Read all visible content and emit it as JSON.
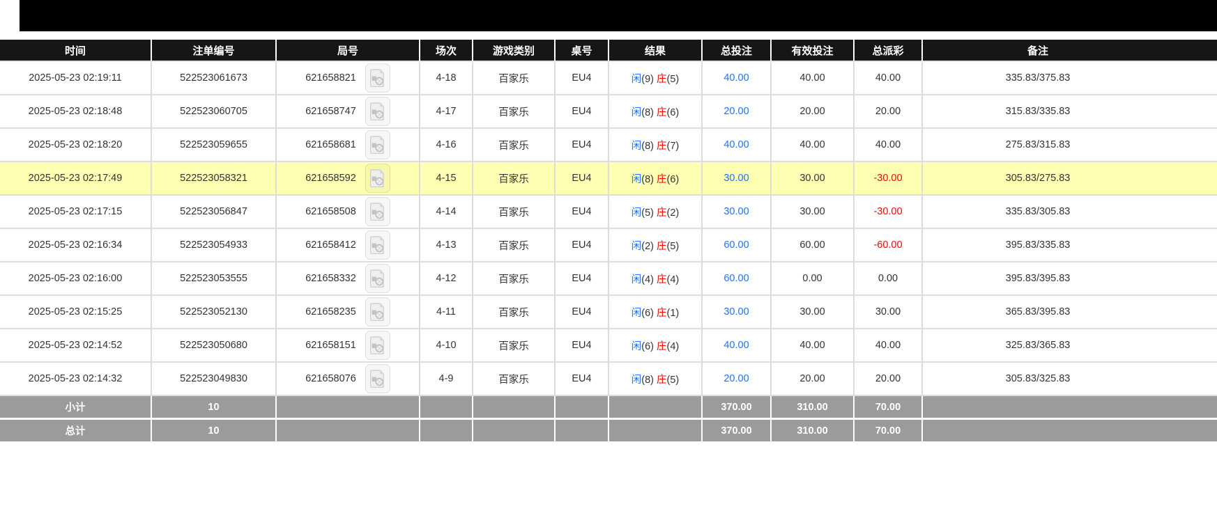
{
  "table": {
    "columns": [
      {
        "key": "time",
        "label": "时间"
      },
      {
        "key": "bet_id",
        "label": "注单编号"
      },
      {
        "key": "round",
        "label": "局号"
      },
      {
        "key": "session",
        "label": "场次"
      },
      {
        "key": "game",
        "label": "游戏类别"
      },
      {
        "key": "table_no",
        "label": "桌号"
      },
      {
        "key": "result",
        "label": "结果"
      },
      {
        "key": "total_bet",
        "label": "总投注"
      },
      {
        "key": "valid_bet",
        "label": "有效投注"
      },
      {
        "key": "payout",
        "label": "总派彩"
      },
      {
        "key": "remark",
        "label": "备注"
      }
    ],
    "icons": {
      "round_video_icon": "video-file-icon"
    },
    "rows": [
      {
        "time": "2025-05-23 02:19:11",
        "bet_id": "522523061673",
        "round": "621658821",
        "session": "4-18",
        "game": "百家乐",
        "table_no": "EU4",
        "player": "闲",
        "player_pts": "(9)",
        "banker": "庄",
        "banker_pts": "(5)",
        "total_bet": "40.00",
        "valid_bet": "40.00",
        "payout": "40.00",
        "payout_neg": false,
        "remark": "335.83/375.83",
        "highlight": false
      },
      {
        "time": "2025-05-23 02:18:48",
        "bet_id": "522523060705",
        "round": "621658747",
        "session": "4-17",
        "game": "百家乐",
        "table_no": "EU4",
        "player": "闲",
        "player_pts": "(8)",
        "banker": "庄",
        "banker_pts": "(6)",
        "total_bet": "20.00",
        "valid_bet": "20.00",
        "payout": "20.00",
        "payout_neg": false,
        "remark": "315.83/335.83",
        "highlight": false
      },
      {
        "time": "2025-05-23 02:18:20",
        "bet_id": "522523059655",
        "round": "621658681",
        "session": "4-16",
        "game": "百家乐",
        "table_no": "EU4",
        "player": "闲",
        "player_pts": "(8)",
        "banker": "庄",
        "banker_pts": "(7)",
        "total_bet": "40.00",
        "valid_bet": "40.00",
        "payout": "40.00",
        "payout_neg": false,
        "remark": "275.83/315.83",
        "highlight": false
      },
      {
        "time": "2025-05-23 02:17:49",
        "bet_id": "522523058321",
        "round": "621658592",
        "session": "4-15",
        "game": "百家乐",
        "table_no": "EU4",
        "player": "闲",
        "player_pts": "(8)",
        "banker": "庄",
        "banker_pts": "(6)",
        "total_bet": "30.00",
        "valid_bet": "30.00",
        "payout": "-30.00",
        "payout_neg": true,
        "remark": "305.83/275.83",
        "highlight": true
      },
      {
        "time": "2025-05-23 02:17:15",
        "bet_id": "522523056847",
        "round": "621658508",
        "session": "4-14",
        "game": "百家乐",
        "table_no": "EU4",
        "player": "闲",
        "player_pts": "(5)",
        "banker": "庄",
        "banker_pts": "(2)",
        "total_bet": "30.00",
        "valid_bet": "30.00",
        "payout": "-30.00",
        "payout_neg": true,
        "remark": "335.83/305.83",
        "highlight": false
      },
      {
        "time": "2025-05-23 02:16:34",
        "bet_id": "522523054933",
        "round": "621658412",
        "session": "4-13",
        "game": "百家乐",
        "table_no": "EU4",
        "player": "闲",
        "player_pts": "(2)",
        "banker": "庄",
        "banker_pts": "(5)",
        "total_bet": "60.00",
        "valid_bet": "60.00",
        "payout": "-60.00",
        "payout_neg": true,
        "remark": "395.83/335.83",
        "highlight": false
      },
      {
        "time": "2025-05-23 02:16:00",
        "bet_id": "522523053555",
        "round": "621658332",
        "session": "4-12",
        "game": "百家乐",
        "table_no": "EU4",
        "player": "闲",
        "player_pts": "(4)",
        "banker": "庄",
        "banker_pts": "(4)",
        "total_bet": "60.00",
        "valid_bet": "0.00",
        "payout": "0.00",
        "payout_neg": false,
        "remark": "395.83/395.83",
        "highlight": false
      },
      {
        "time": "2025-05-23 02:15:25",
        "bet_id": "522523052130",
        "round": "621658235",
        "session": "4-11",
        "game": "百家乐",
        "table_no": "EU4",
        "player": "闲",
        "player_pts": "(6)",
        "banker": "庄",
        "banker_pts": "(1)",
        "total_bet": "30.00",
        "valid_bet": "30.00",
        "payout": "30.00",
        "payout_neg": false,
        "remark": "365.83/395.83",
        "highlight": false
      },
      {
        "time": "2025-05-23 02:14:52",
        "bet_id": "522523050680",
        "round": "621658151",
        "session": "4-10",
        "game": "百家乐",
        "table_no": "EU4",
        "player": "闲",
        "player_pts": "(6)",
        "banker": "庄",
        "banker_pts": "(4)",
        "total_bet": "40.00",
        "valid_bet": "40.00",
        "payout": "40.00",
        "payout_neg": false,
        "remark": "325.83/365.83",
        "highlight": false
      },
      {
        "time": "2025-05-23 02:14:32",
        "bet_id": "522523049830",
        "round": "621658076",
        "session": "4-9",
        "game": "百家乐",
        "table_no": "EU4",
        "player": "闲",
        "player_pts": "(8)",
        "banker": "庄",
        "banker_pts": "(5)",
        "total_bet": "20.00",
        "valid_bet": "20.00",
        "payout": "20.00",
        "payout_neg": false,
        "remark": "305.83/325.83",
        "highlight": false
      }
    ],
    "subtotal": {
      "label": "小计",
      "count": "10",
      "total_bet": "370.00",
      "valid_bet": "310.00",
      "payout": "70.00"
    },
    "total": {
      "label": "总计",
      "count": "10",
      "total_bet": "370.00",
      "valid_bet": "310.00",
      "payout": "70.00"
    },
    "colors": {
      "header_bg": "#161616",
      "highlight_row": "#ffffb4",
      "player_blue": "#1673ff",
      "banker_red": "#ff0000",
      "bet_amount_blue": "#1673ff",
      "negative_red": "#ff0000",
      "footer_bg": "#9b9b9b"
    }
  }
}
